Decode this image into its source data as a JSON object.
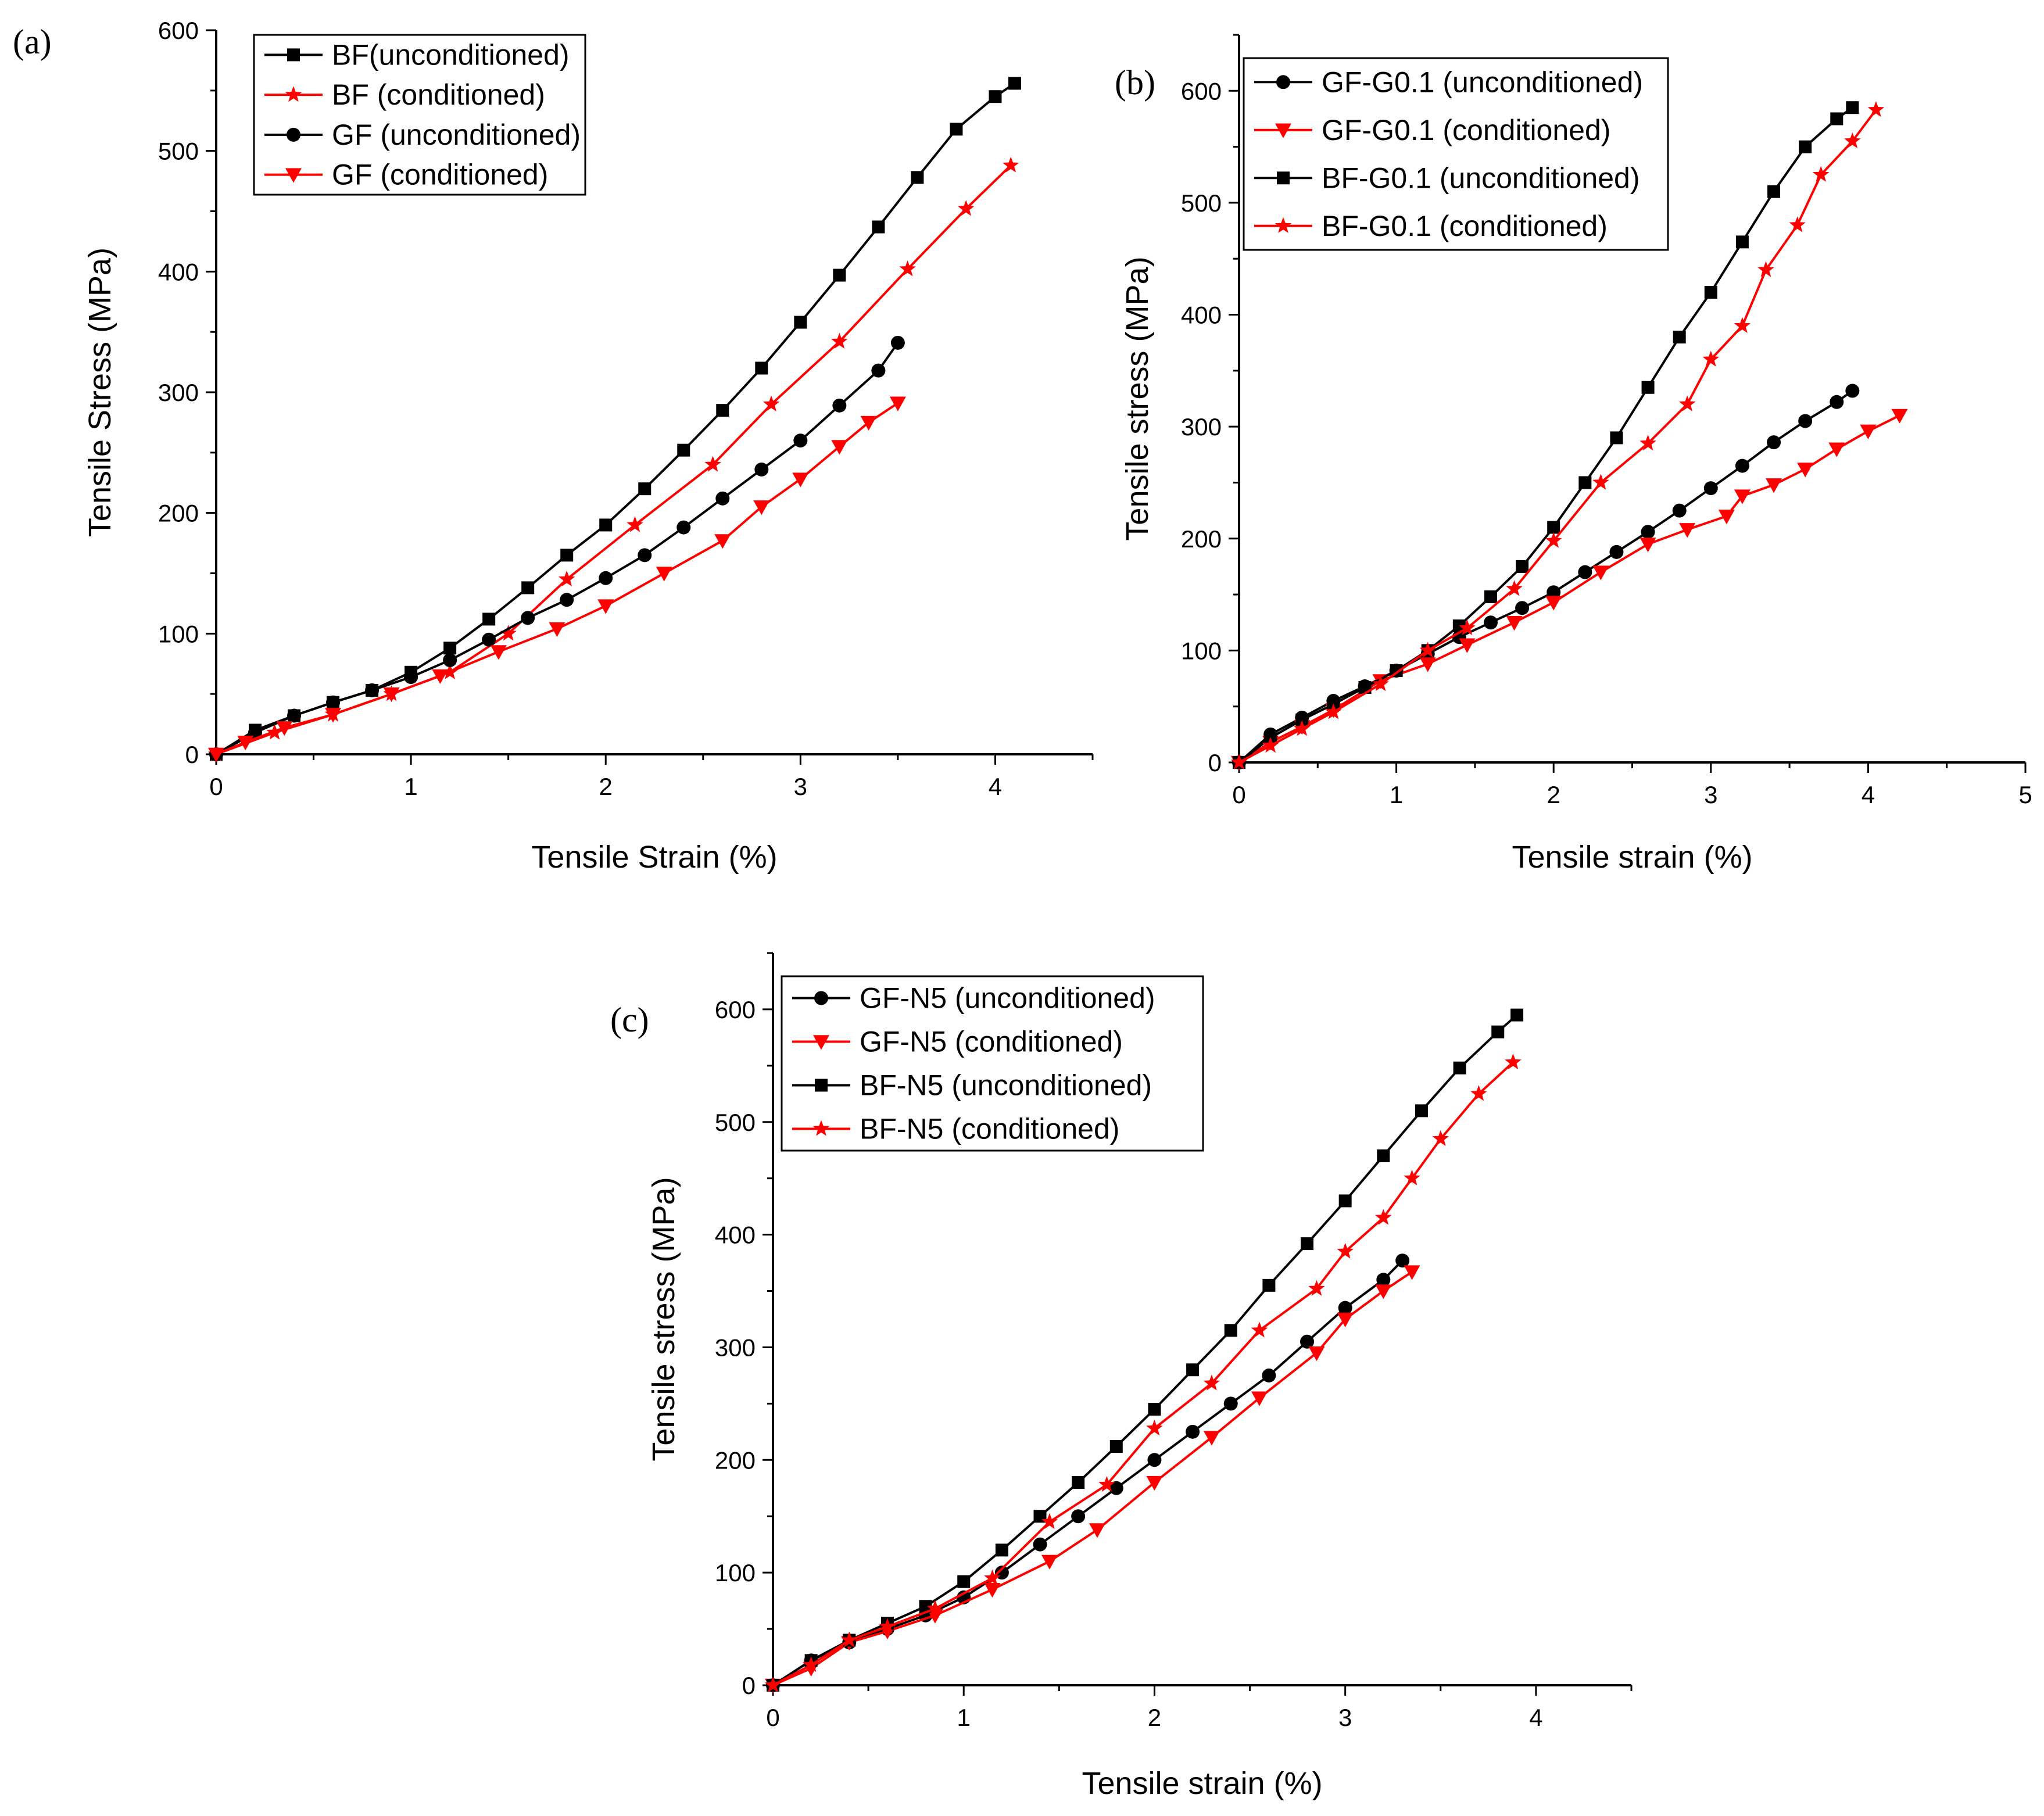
{
  "chart_data": [
    {
      "type": "line",
      "panel_label": "(a)",
      "xlabel": "Tensile Strain (%)",
      "ylabel": "Tensile Stress (MPa)",
      "xlim": [
        0,
        4.5
      ],
      "ylim": [
        0,
        600
      ],
      "xticks": [
        "0",
        "1",
        "2",
        "3",
        "4"
      ],
      "yticks": [
        "0",
        "100",
        "200",
        "300",
        "400",
        "500",
        "600"
      ],
      "legend": "top-left",
      "series": [
        {
          "name": "BF(unconditioned)",
          "color": "#000000",
          "marker": "square",
          "x": [
            0,
            0.2,
            0.4,
            0.6,
            0.8,
            1.0,
            1.2,
            1.4,
            1.6,
            1.8,
            2.0,
            2.2,
            2.4,
            2.6,
            2.8,
            3.0,
            3.2,
            3.4,
            3.6,
            3.8,
            4.0,
            4.1
          ],
          "y": [
            0,
            20,
            32,
            43,
            53,
            68,
            88,
            112,
            138,
            165,
            190,
            220,
            252,
            285,
            320,
            358,
            397,
            437,
            478,
            518,
            545,
            556
          ]
        },
        {
          "name": "BF (conditioned)",
          "color": "#ff0000",
          "marker": "star",
          "x": [
            0,
            0.3,
            0.6,
            0.9,
            1.2,
            1.5,
            1.8,
            2.15,
            2.55,
            2.85,
            3.2,
            3.55,
            3.85,
            4.08
          ],
          "y": [
            0,
            18,
            33,
            50,
            68,
            100,
            145,
            190,
            240,
            290,
            342,
            402,
            452,
            488
          ]
        },
        {
          "name": "GF (unconditioned)",
          "color": "#000000",
          "marker": "circle",
          "x": [
            0,
            0.2,
            0.4,
            0.6,
            0.8,
            1.0,
            1.2,
            1.4,
            1.6,
            1.8,
            2.0,
            2.2,
            2.4,
            2.6,
            2.8,
            3.0,
            3.2,
            3.4,
            3.5
          ],
          "y": [
            0,
            18,
            32,
            43,
            53,
            64,
            78,
            95,
            113,
            128,
            146,
            165,
            188,
            212,
            236,
            260,
            289,
            318,
            341
          ]
        },
        {
          "name": "GF (conditioned)",
          "color": "#ff0000",
          "marker": "triangle-down",
          "x": [
            0,
            0.15,
            0.35,
            0.6,
            0.9,
            1.15,
            1.45,
            1.75,
            2.0,
            2.3,
            2.6,
            2.8,
            3.0,
            3.2,
            3.35,
            3.5
          ],
          "y": [
            0,
            10,
            22,
            33,
            50,
            65,
            85,
            104,
            123,
            150,
            177,
            205,
            228,
            255,
            275,
            291
          ]
        }
      ]
    },
    {
      "type": "line",
      "panel_label": "(b)",
      "xlabel": "Tensile strain (%)",
      "ylabel": "Tensile stress (MPa)",
      "xlim": [
        0,
        5
      ],
      "ylim": [
        0,
        650
      ],
      "xticks": [
        "0",
        "1",
        "2",
        "3",
        "4",
        "5"
      ],
      "yticks": [
        "0",
        "100",
        "200",
        "300",
        "400",
        "500",
        "600"
      ],
      "legend": "top-left",
      "series": [
        {
          "name": "GF-G0.1 (unconditioned)",
          "color": "#000000",
          "marker": "circle",
          "x": [
            0,
            0.2,
            0.4,
            0.6,
            0.8,
            1.0,
            1.2,
            1.4,
            1.6,
            1.8,
            2.0,
            2.2,
            2.4,
            2.6,
            2.8,
            3.0,
            3.2,
            3.4,
            3.6,
            3.8,
            3.9
          ],
          "y": [
            0,
            25,
            40,
            55,
            68,
            82,
            97,
            112,
            125,
            138,
            152,
            170,
            188,
            206,
            225,
            245,
            265,
            286,
            305,
            322,
            332
          ]
        },
        {
          "name": "GF-G0.1 (conditioned)",
          "color": "#ff0000",
          "marker": "triangle-down",
          "x": [
            0,
            0.2,
            0.4,
            0.6,
            0.9,
            1.2,
            1.45,
            1.75,
            2.0,
            2.3,
            2.6,
            2.85,
            3.1,
            3.2,
            3.4,
            3.6,
            3.8,
            4.0,
            4.2
          ],
          "y": [
            0,
            18,
            32,
            47,
            73,
            88,
            105,
            125,
            143,
            170,
            195,
            208,
            220,
            238,
            248,
            262,
            280,
            296,
            310
          ]
        },
        {
          "name": "BF-G0.1 (unconditioned)",
          "color": "#000000",
          "marker": "square",
          "x": [
            0,
            0.2,
            0.4,
            0.6,
            0.8,
            1.0,
            1.2,
            1.4,
            1.6,
            1.8,
            2.0,
            2.2,
            2.4,
            2.6,
            2.8,
            3.0,
            3.2,
            3.4,
            3.6,
            3.8,
            3.9
          ],
          "y": [
            0,
            22,
            38,
            52,
            67,
            82,
            100,
            122,
            148,
            175,
            210,
            250,
            290,
            335,
            380,
            420,
            465,
            510,
            550,
            575,
            585
          ]
        },
        {
          "name": "BF-G0.1 (conditioned)",
          "color": "#ff0000",
          "marker": "star",
          "x": [
            0,
            0.2,
            0.4,
            0.6,
            0.9,
            1.2,
            1.45,
            1.75,
            2.0,
            2.3,
            2.6,
            2.85,
            3.0,
            3.2,
            3.35,
            3.55,
            3.7,
            3.9,
            4.05
          ],
          "y": [
            0,
            15,
            30,
            45,
            70,
            100,
            120,
            155,
            198,
            250,
            285,
            320,
            360,
            390,
            440,
            480,
            525,
            555,
            583
          ]
        }
      ]
    },
    {
      "type": "line",
      "panel_label": "(c)",
      "xlabel": "Tensile strain (%)",
      "ylabel": "Tensile stress (MPa)",
      "xlim": [
        0,
        4.5
      ],
      "ylim": [
        0,
        650
      ],
      "xticks": [
        "0",
        "1",
        "2",
        "3",
        "4"
      ],
      "yticks": [
        "0",
        "100",
        "200",
        "300",
        "400",
        "500",
        "600"
      ],
      "legend": "top-left",
      "series": [
        {
          "name": "GF-N5 (unconditioned)",
          "color": "#000000",
          "marker": "circle",
          "x": [
            0,
            0.2,
            0.4,
            0.6,
            0.8,
            1.0,
            1.2,
            1.4,
            1.6,
            1.8,
            2.0,
            2.2,
            2.4,
            2.6,
            2.8,
            3.0,
            3.2,
            3.3
          ],
          "y": [
            0,
            22,
            38,
            50,
            62,
            78,
            100,
            125,
            150,
            175,
            200,
            225,
            250,
            275,
            305,
            335,
            360,
            377
          ]
        },
        {
          "name": "GF-N5 (conditioned)",
          "color": "#ff0000",
          "marker": "triangle-down",
          "x": [
            0,
            0.2,
            0.4,
            0.6,
            0.85,
            1.15,
            1.45,
            1.7,
            2.0,
            2.3,
            2.55,
            2.85,
            3.0,
            3.2,
            3.35
          ],
          "y": [
            0,
            15,
            38,
            48,
            62,
            85,
            110,
            138,
            180,
            220,
            255,
            295,
            325,
            350,
            367
          ]
        },
        {
          "name": "BF-N5 (unconditioned)",
          "color": "#000000",
          "marker": "square",
          "x": [
            0,
            0.2,
            0.4,
            0.6,
            0.8,
            1.0,
            1.2,
            1.4,
            1.6,
            1.8,
            2.0,
            2.2,
            2.4,
            2.6,
            2.8,
            3.0,
            3.2,
            3.4,
            3.6,
            3.8,
            3.9
          ],
          "y": [
            0,
            22,
            40,
            55,
            70,
            92,
            120,
            150,
            180,
            212,
            245,
            280,
            315,
            355,
            392,
            430,
            470,
            510,
            548,
            580,
            595
          ]
        },
        {
          "name": "BF-N5 (conditioned)",
          "color": "#ff0000",
          "marker": "star",
          "x": [
            0,
            0.2,
            0.4,
            0.6,
            0.85,
            1.15,
            1.45,
            1.75,
            2.0,
            2.3,
            2.55,
            2.85,
            3.0,
            3.2,
            3.35,
            3.5,
            3.7,
            3.88
          ],
          "y": [
            0,
            18,
            40,
            52,
            68,
            95,
            145,
            178,
            228,
            268,
            315,
            352,
            385,
            415,
            450,
            485,
            525,
            553
          ]
        }
      ]
    }
  ]
}
